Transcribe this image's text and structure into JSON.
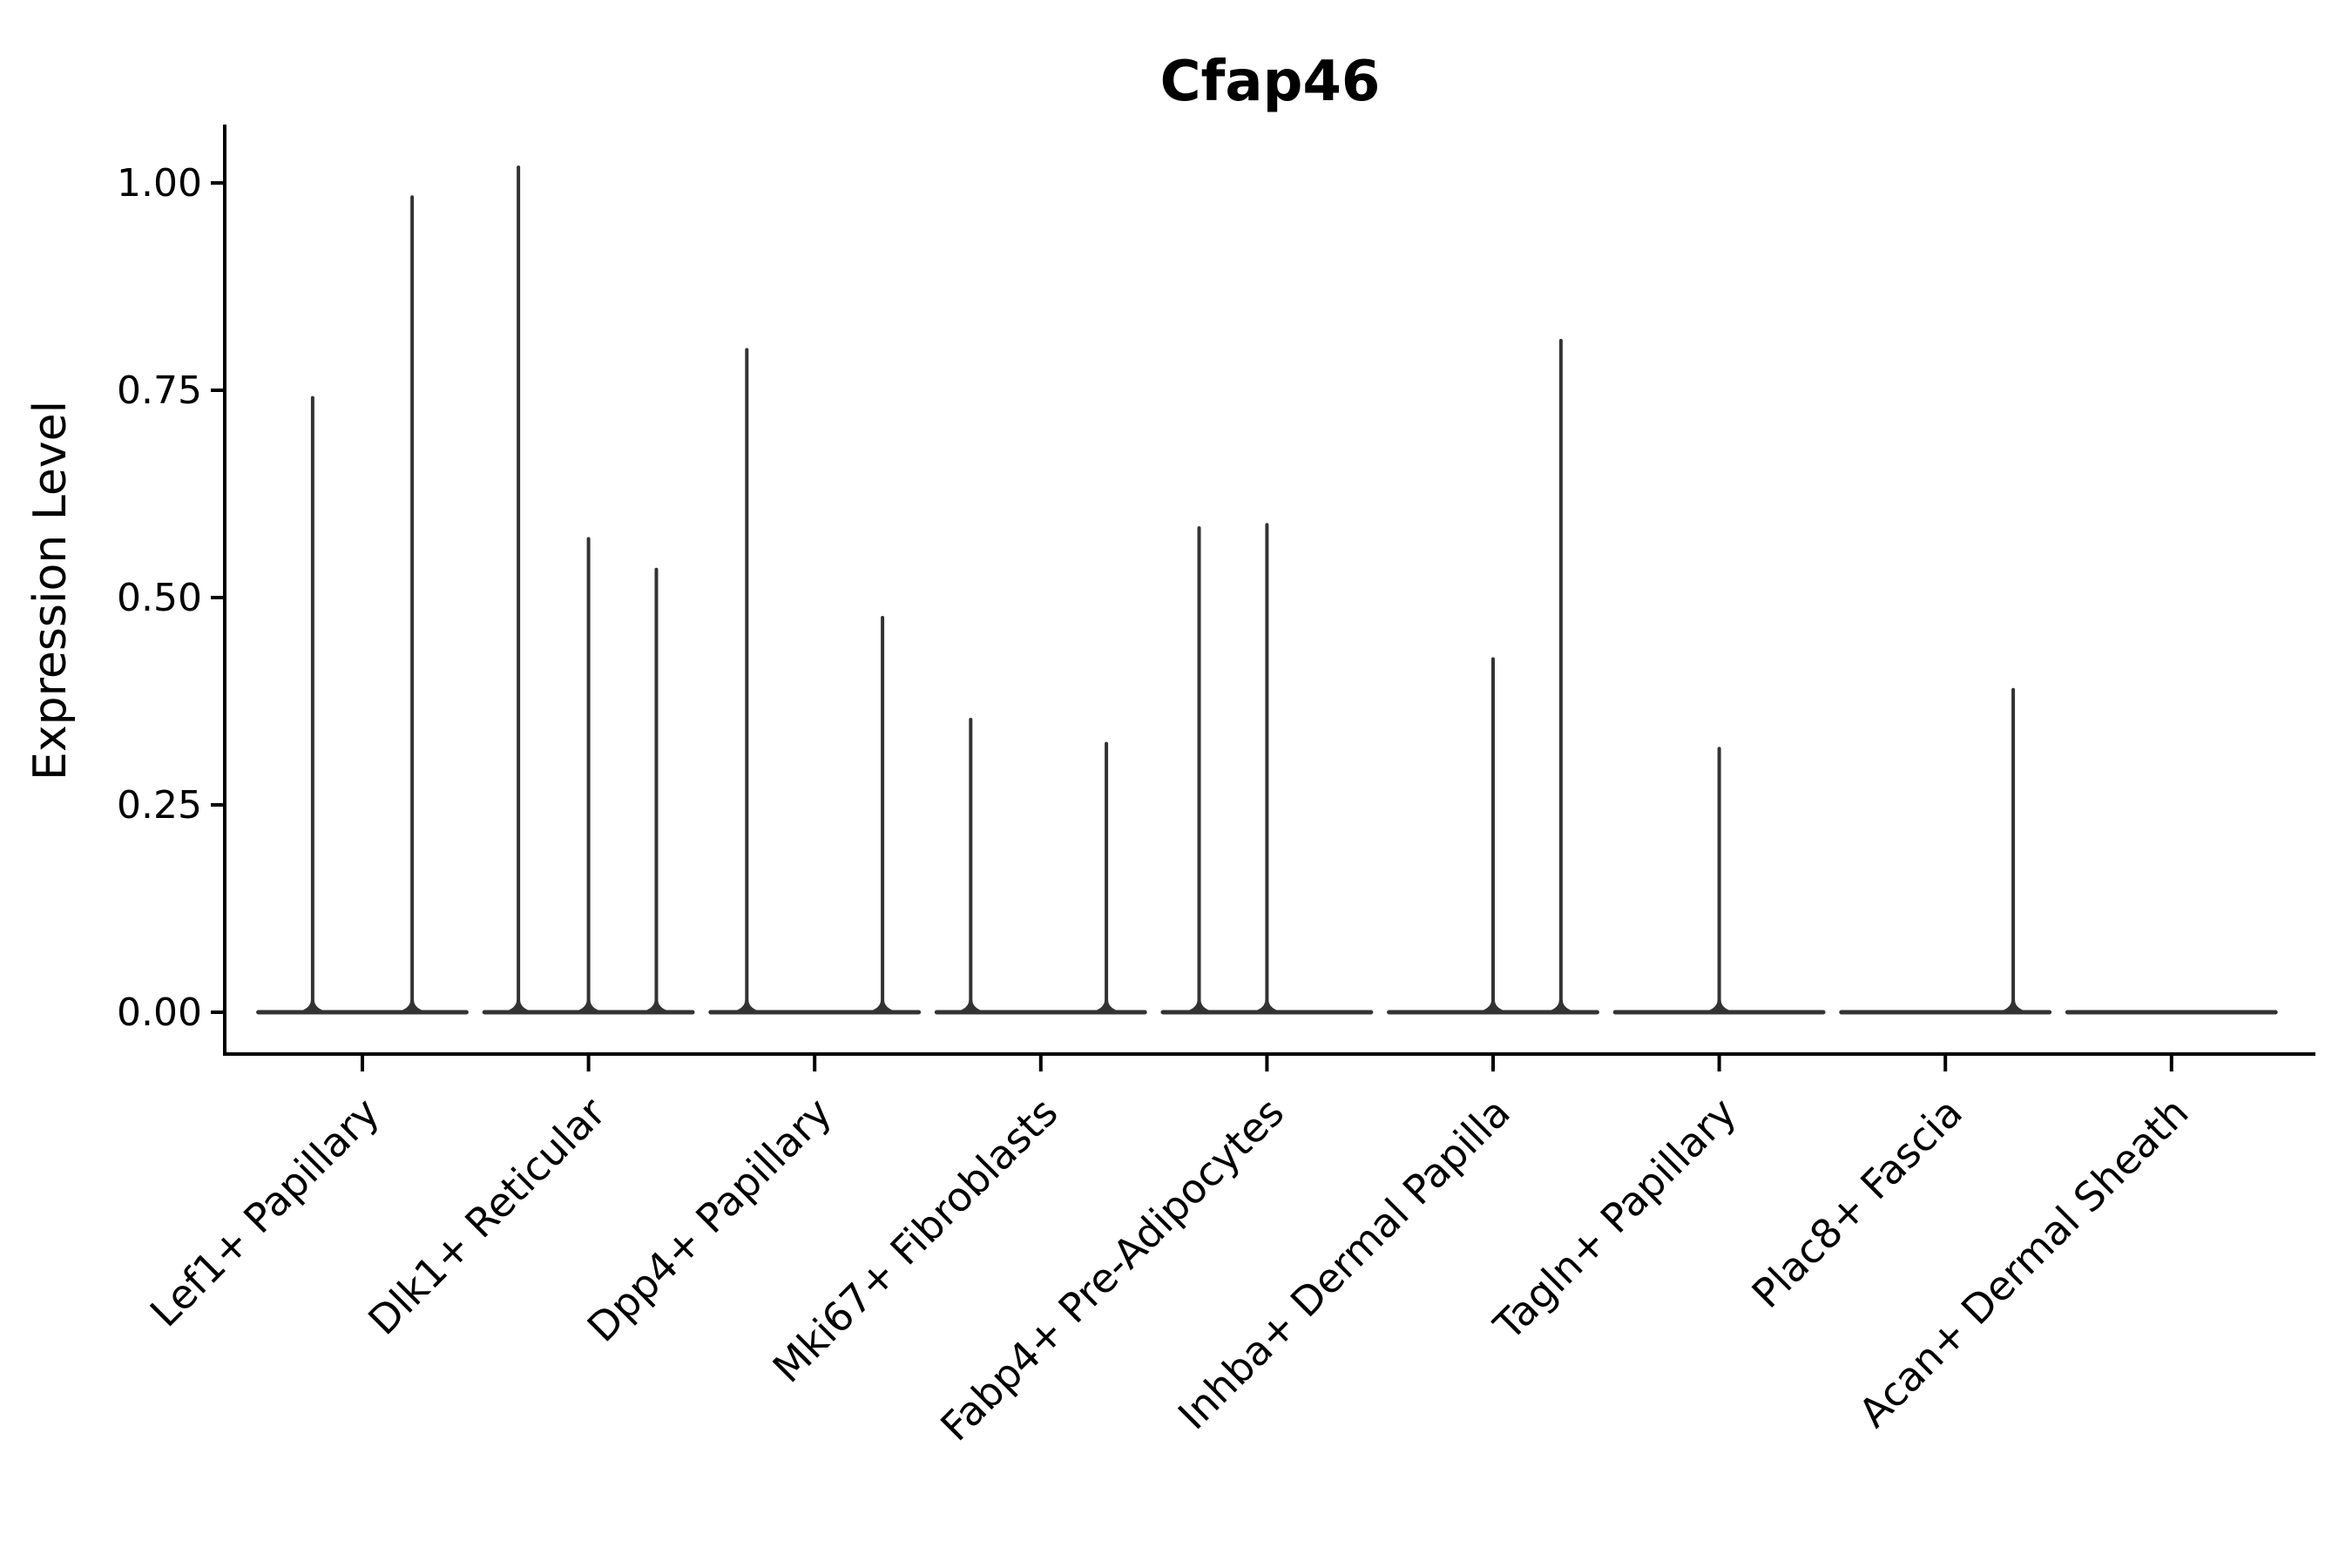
{
  "chart_data": {
    "type": "violin",
    "title": "Cfap46",
    "ylabel": "Expression Level",
    "xlabel": "",
    "grid": false,
    "legend": "none",
    "ylim": [
      -0.052,
      1.068
    ],
    "yticks": [
      {
        "value": 1.0,
        "label": "1.00"
      },
      {
        "value": 0.75,
        "label": "0.75"
      },
      {
        "value": 0.5,
        "label": "0.50"
      },
      {
        "value": 0.25,
        "label": "0.25"
      },
      {
        "value": 0.0,
        "label": "0.00"
      }
    ],
    "categories": [
      "Lef1+ Papillary",
      "Dlk1+ Reticular",
      "Dpp4+ Papillary",
      "Mki67+ Fibroblasts",
      "Fabp4+ Pre-Adipocytes",
      "Inhba+ Dermal Papilla",
      "Tagln+ Papillary",
      "Plac8+ Fascia",
      "Acan+ Dermal Sheath"
    ],
    "violins": [
      {
        "category": "Lef1+ Papillary",
        "body_halfwidth_frac": 0.46,
        "spikes": [
          {
            "offset_frac": -0.22,
            "max": 0.743
          },
          {
            "offset_frac": 0.22,
            "max": 0.985
          }
        ]
      },
      {
        "category": "Dlk1+ Reticular",
        "body_halfwidth_frac": 0.46,
        "spikes": [
          {
            "offset_frac": -0.31,
            "max": 1.021
          },
          {
            "offset_frac": 0.0,
            "max": 0.573
          },
          {
            "offset_frac": 0.3,
            "max": 0.536
          }
        ]
      },
      {
        "category": "Dpp4+ Papillary",
        "body_halfwidth_frac": 0.46,
        "spikes": [
          {
            "offset_frac": -0.3,
            "max": 0.801
          },
          {
            "offset_frac": 0.3,
            "max": 0.478
          }
        ]
      },
      {
        "category": "Mki67+ Fibroblasts",
        "body_halfwidth_frac": 0.46,
        "spikes": [
          {
            "offset_frac": -0.31,
            "max": 0.355
          },
          {
            "offset_frac": 0.29,
            "max": 0.326
          }
        ]
      },
      {
        "category": "Fabp4+ Pre-Adipocytes",
        "body_halfwidth_frac": 0.46,
        "spikes": [
          {
            "offset_frac": -0.3,
            "max": 0.586
          },
          {
            "offset_frac": 0.0,
            "max": 0.59
          }
        ]
      },
      {
        "category": "Inhba+ Dermal Papilla",
        "body_halfwidth_frac": 0.46,
        "spikes": [
          {
            "offset_frac": 0.0,
            "max": 0.428
          },
          {
            "offset_frac": 0.3,
            "max": 0.812
          }
        ]
      },
      {
        "category": "Tagln+ Papillary",
        "body_halfwidth_frac": 0.46,
        "spikes": [
          {
            "offset_frac": 0.0,
            "max": 0.32
          }
        ]
      },
      {
        "category": "Plac8+ Fascia",
        "body_halfwidth_frac": 0.46,
        "spikes": [
          {
            "offset_frac": 0.3,
            "max": 0.391
          }
        ]
      },
      {
        "category": "Acan+ Dermal Sheath",
        "body_halfwidth_frac": 0.46,
        "spikes": []
      }
    ],
    "colors": {
      "violin": "#333333",
      "axis": "#000000",
      "text": "#000000",
      "background": "#ffffff"
    }
  }
}
